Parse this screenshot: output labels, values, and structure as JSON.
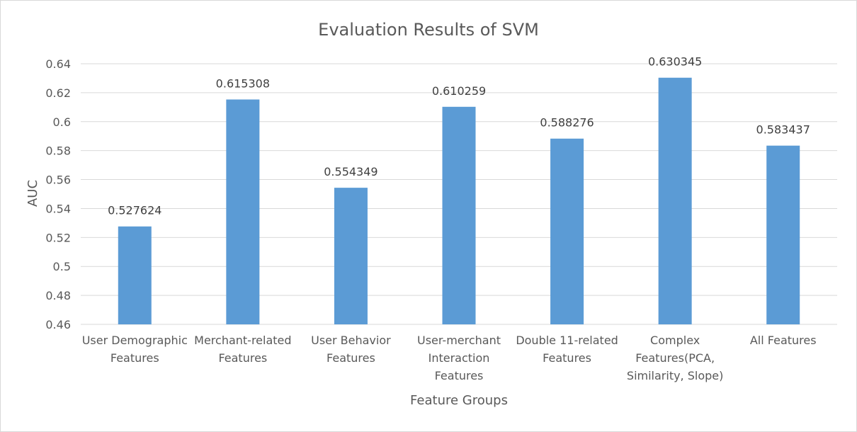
{
  "chart_data": {
    "type": "bar",
    "title": "Evaluation Results of SVM",
    "xlabel": "Feature Groups",
    "ylabel": "AUC",
    "categories": [
      [
        "User Demographic",
        "Features"
      ],
      [
        "Merchant-related",
        "Features"
      ],
      [
        "User Behavior",
        "Features"
      ],
      [
        "User-merchant",
        "Interaction",
        "Features"
      ],
      [
        "Double 11-related",
        "Features"
      ],
      [
        "Complex",
        "Features(PCA,",
        "Similarity, Slope)"
      ],
      [
        "All Features"
      ]
    ],
    "values": [
      0.527624,
      0.615308,
      0.554349,
      0.610259,
      0.588276,
      0.630345,
      0.583437
    ],
    "data_labels": [
      "0.527624",
      "0.615308",
      "0.554349",
      "0.610259",
      "0.588276",
      "0.630345",
      "0.583437"
    ],
    "ylim": [
      0.46,
      0.64
    ],
    "yticks": [
      0.46,
      0.48,
      0.5,
      0.52,
      0.54,
      0.56,
      0.58,
      0.6,
      0.62,
      0.64
    ],
    "ytick_labels": [
      "0.46",
      "0.48",
      "0.5",
      "0.52",
      "0.54",
      "0.56",
      "0.58",
      "0.6",
      "0.62",
      "0.64"
    ],
    "grid": true,
    "legend": "none",
    "bar_color": "#5b9bd5"
  }
}
